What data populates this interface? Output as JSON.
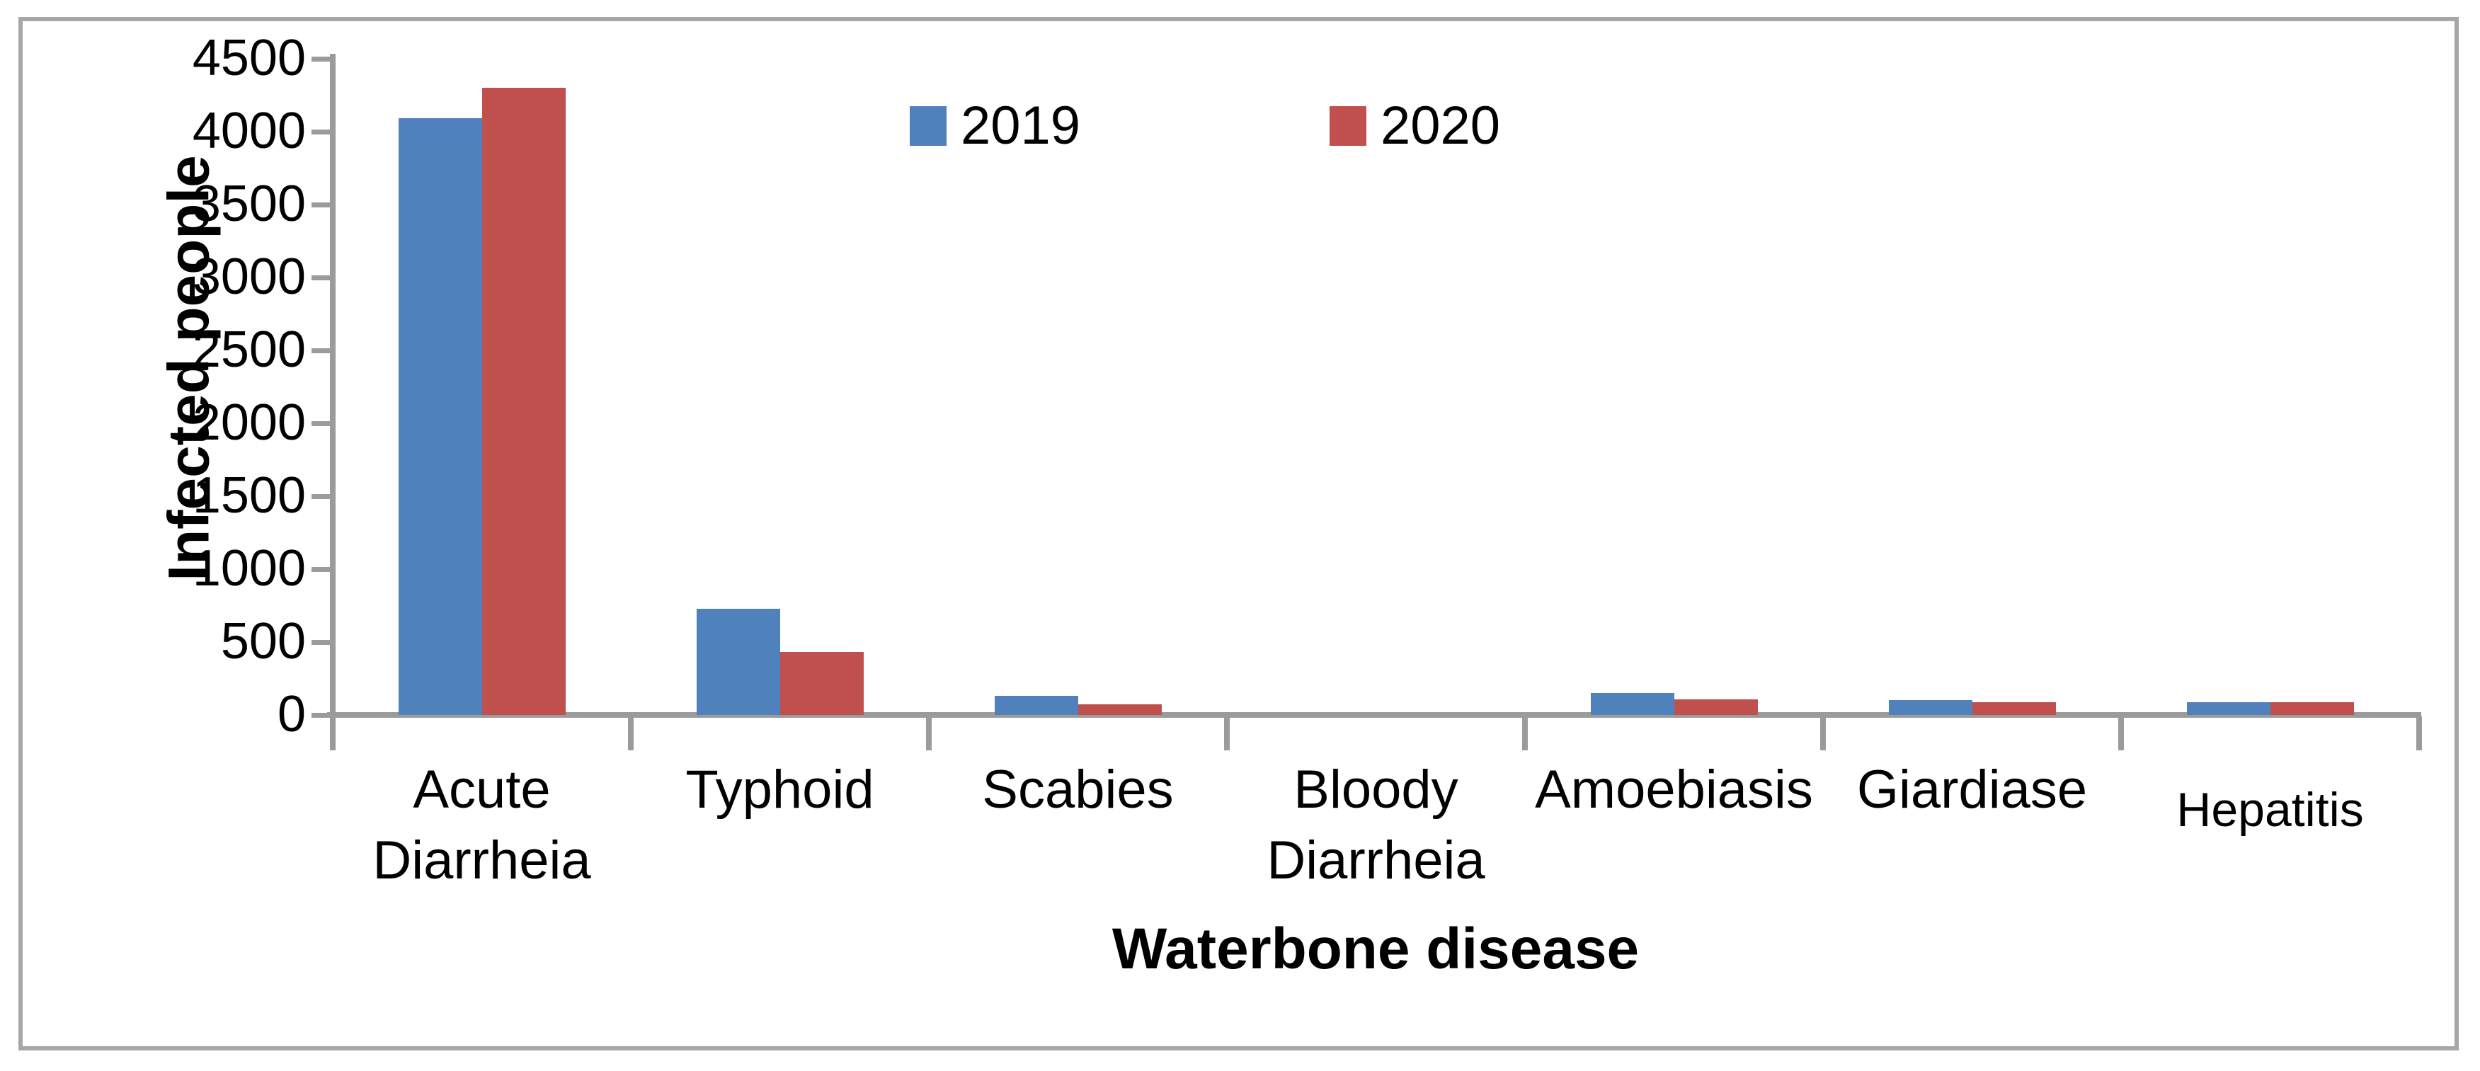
{
  "chart_data": {
    "type": "bar",
    "title": "",
    "xlabel": "Waterbone disease",
    "ylabel": "Infected people",
    "categories": [
      "Acute Diarrheia",
      "Typhoid",
      "Scabies",
      "Bloody Diarrheia",
      "Amoebiasis",
      "Giardiase",
      "Hepatitis"
    ],
    "category_label_lines": [
      [
        "Acute",
        "Diarrheia"
      ],
      [
        "Typhoid"
      ],
      [
        "Scabies"
      ],
      [
        "Bloody",
        "Diarrheia"
      ],
      [
        "Amoebiasis"
      ],
      [
        "Giardiase"
      ],
      [
        "Hepatitis"
      ]
    ],
    "series": [
      {
        "name": "2019",
        "color": "#4F81BD",
        "values": [
          4090,
          730,
          130,
          0,
          150,
          100,
          85
        ]
      },
      {
        "name": "2020",
        "color": "#C0504D",
        "values": [
          4300,
          430,
          75,
          0,
          105,
          85,
          85
        ]
      }
    ],
    "ylim": [
      0,
      4500
    ],
    "ytick_step": 500,
    "yticks": [
      0,
      500,
      1000,
      1500,
      2000,
      2500,
      3000,
      3500,
      4000,
      4500
    ],
    "legend_position": "top-center",
    "grid": false
  },
  "colors": {
    "series_2019": "#4F81BD",
    "series_2020": "#C0504D",
    "axis": "#9B9B9B",
    "frame_border": "#A7A7A7",
    "background": "#FFFFFF",
    "text": "#000000"
  }
}
